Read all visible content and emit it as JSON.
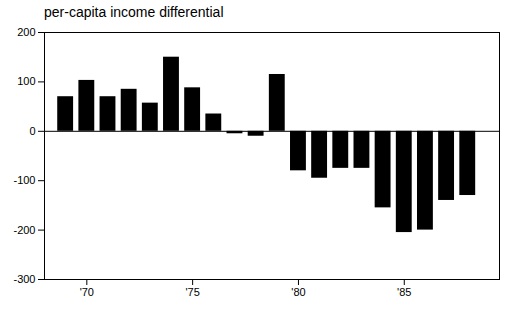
{
  "chart_data": {
    "type": "bar",
    "title": "per-capita income differential",
    "x": [
      1969,
      1970,
      1971,
      1972,
      1973,
      1974,
      1975,
      1976,
      1977,
      1978,
      1979,
      1980,
      1981,
      1982,
      1983,
      1984,
      1985,
      1986,
      1987,
      1988
    ],
    "values": [
      70,
      103,
      70,
      85,
      57,
      150,
      88,
      35,
      -5,
      -10,
      115,
      -80,
      -95,
      -75,
      -75,
      -155,
      -205,
      -200,
      -140,
      -130
    ],
    "xlim": [
      1968.0,
      1989.5
    ],
    "xticks": [
      {
        "value": 1970,
        "label": "'70"
      },
      {
        "value": 1975,
        "label": "'75"
      },
      {
        "value": 1980,
        "label": "'80"
      },
      {
        "value": 1985,
        "label": "'85"
      }
    ],
    "ylim": [
      -300,
      200
    ],
    "yticks": [
      -300,
      -200,
      -100,
      0,
      100,
      200
    ],
    "grid": false
  }
}
